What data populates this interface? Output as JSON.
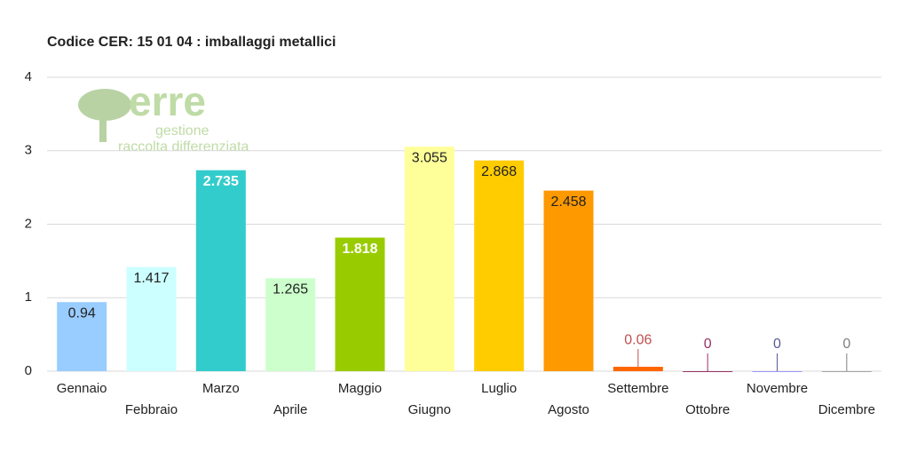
{
  "chart_data": {
    "type": "bar",
    "title": "Codice CER: 15 01 04 : imballaggi metallici",
    "categories": [
      "Gennaio",
      "Febbraio",
      "Marzo",
      "Aprile",
      "Maggio",
      "Giugno",
      "Luglio",
      "Agosto",
      "Settembre",
      "Ottobre",
      "Novembre",
      "Dicembre"
    ],
    "values": [
      0.94,
      1.417,
      2.735,
      1.265,
      1.818,
      3.055,
      2.868,
      2.458,
      0.06,
      0,
      0,
      0
    ],
    "colors": [
      "#99ccff",
      "#ccffff",
      "#33cccc",
      "#ccffcc",
      "#99cc00",
      "#ffff99",
      "#ffcc00",
      "#ff9900",
      "#ff6600",
      "#993366",
      "#9999ff",
      "#a6a6a6"
    ],
    "value_label_colors": [
      "#222222",
      "#222222",
      "#ffffff",
      "#222222",
      "#ffffff",
      "#222222",
      "#222222",
      "#222222",
      "#c0504d",
      "#993366",
      "#5a5a9a",
      "#7f7f7f"
    ],
    "ylim": [
      0,
      4
    ],
    "yticks": [
      0,
      1,
      2,
      3,
      4
    ],
    "grid": true
  },
  "watermark": {
    "lines": [
      "erre",
      "gestione",
      "raccolta differenziata"
    ]
  }
}
